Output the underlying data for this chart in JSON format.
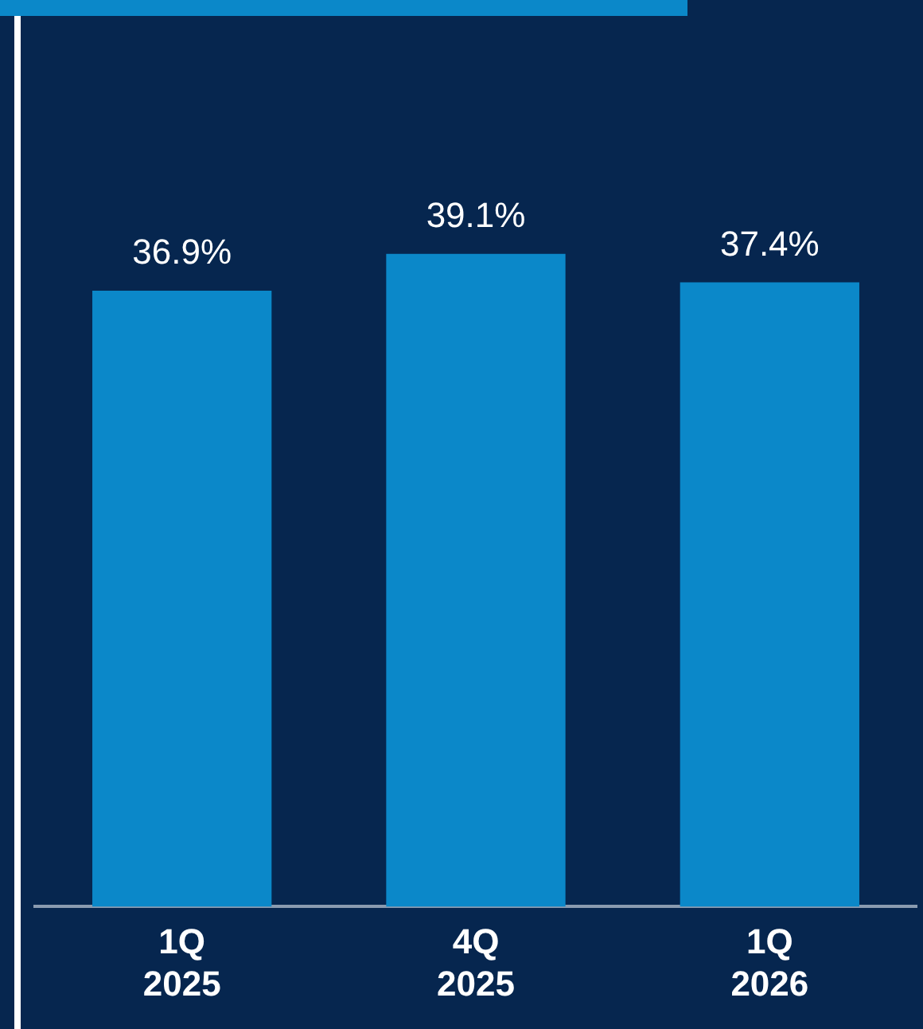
{
  "chart_data": {
    "type": "bar",
    "categories": [
      "1Q 2025",
      "4Q 2025",
      "1Q 2026"
    ],
    "values": [
      36.9,
      39.1,
      37.4
    ],
    "color": "#0b88c9",
    "tick_labels": "x",
    "grid": false,
    "legend": false,
    "value_labels": [
      "36.9%",
      "39.1%",
      "37.4%"
    ]
  }
}
